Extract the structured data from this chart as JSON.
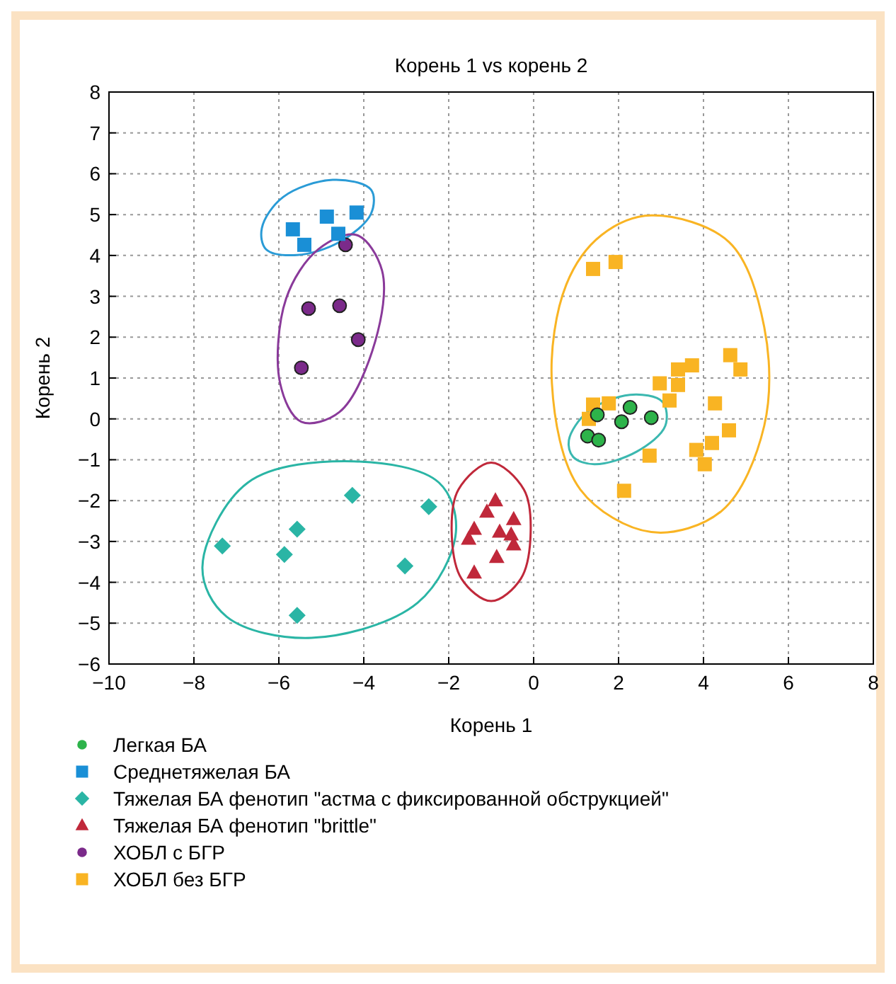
{
  "chart_data": {
    "type": "scatter",
    "title": "Корень 1 vs корень 2",
    "xlabel": "Корень 1",
    "ylabel": "Корень 2",
    "xlim": [
      -10,
      8
    ],
    "xticks": [
      -10,
      -8,
      -6,
      -4,
      -2,
      0,
      2,
      4,
      6,
      8
    ],
    "ylim": [
      -6,
      8
    ],
    "yticks": [
      -6,
      -5,
      -4,
      -3,
      -2,
      -1,
      0,
      1,
      2,
      3,
      4,
      5,
      6,
      7,
      8
    ],
    "grid": true,
    "legend": "bottom left",
    "series": [
      {
        "name": "Легкая БА",
        "color": "#2db34a",
        "marker": "circle",
        "x": [
          1.5,
          1.27,
          1.53,
          2.07,
          2.27,
          2.77
        ],
        "values": [
          0.1,
          -0.42,
          -0.52,
          -0.07,
          0.28,
          0.03
        ]
      },
      {
        "name": "Среднетяжелая БА",
        "color": "#1a8fd6",
        "marker": "square",
        "x": [
          -5.67,
          -5.4,
          -4.87,
          -4.6,
          -4.17
        ],
        "values": [
          4.64,
          4.26,
          4.95,
          4.53,
          5.05
        ]
      },
      {
        "name": "Тяжелая БА фенотип \"астма с фиксированной обструкцией\"",
        "color": "#2ab5a5",
        "marker": "diamond",
        "x": [
          -7.33,
          -5.57,
          -5.87,
          -5.57,
          -4.27,
          -2.47,
          -3.03
        ],
        "values": [
          -3.11,
          -2.7,
          -3.32,
          -4.81,
          -1.87,
          -2.15,
          -3.6
        ]
      },
      {
        "name": "Тяжелая БА фенотип \"brittle\"",
        "color": "#c0283a",
        "marker": "triangle",
        "x": [
          -0.9,
          -1.1,
          -0.47,
          -1.4,
          -0.8,
          -1.53,
          -0.53,
          -0.47,
          -0.87,
          -1.4
        ],
        "values": [
          -2.0,
          -2.28,
          -2.46,
          -2.7,
          -2.77,
          -2.94,
          -2.84,
          -3.08,
          -3.39,
          -3.77
        ]
      },
      {
        "name": "ХОБЛ с БГР",
        "color": "#7b2a8a",
        "marker": "circle",
        "x": [
          -4.43,
          -5.3,
          -4.57,
          -4.13,
          -5.47
        ],
        "values": [
          4.26,
          2.7,
          2.77,
          1.94,
          1.25
        ]
      },
      {
        "name": "ХОБЛ без БГР",
        "color": "#f9b423",
        "marker": "square",
        "x": [
          1.4,
          1.93,
          4.63,
          4.87,
          3.73,
          3.4,
          2.97,
          3.4,
          3.2,
          4.27,
          1.4,
          1.77,
          1.3,
          4.6,
          2.73,
          4.2,
          3.83,
          4.03,
          2.13
        ],
        "values": [
          3.67,
          3.84,
          1.56,
          1.21,
          1.31,
          1.21,
          0.87,
          0.83,
          0.45,
          0.38,
          0.35,
          0.38,
          0.0,
          -0.28,
          -0.9,
          -0.59,
          -0.76,
          -1.11,
          -1.76
        ]
      }
    ]
  }
}
